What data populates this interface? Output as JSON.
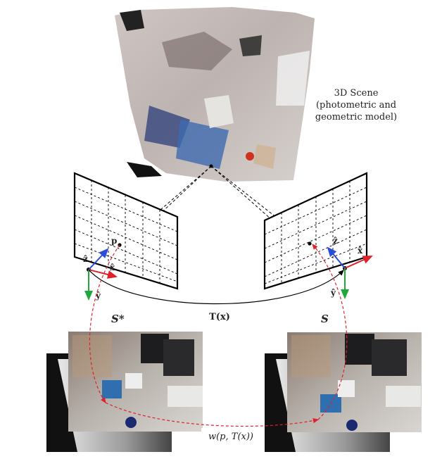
{
  "scene": {
    "title": "3D Scene",
    "subtitle_line1": "(photometric and",
    "subtitle_line2": "geometric model)"
  },
  "left_camera": {
    "point_label": "p",
    "axis_z": "ẑ",
    "axis_x": "x̂",
    "axis_y": "ŷ",
    "surface_label": "S*"
  },
  "right_camera": {
    "axis_z": "ẑ",
    "axis_x": "x̂",
    "axis_y": "ŷ",
    "surface_label": "S"
  },
  "transform_label": "T(x)",
  "warp_label": "w(p, T(x))",
  "colors": {
    "x_axis": "#e0202a",
    "y_axis": "#22a838",
    "z_axis": "#2a4fd6",
    "warp_path": "#e0202a",
    "frame": "#000000"
  }
}
